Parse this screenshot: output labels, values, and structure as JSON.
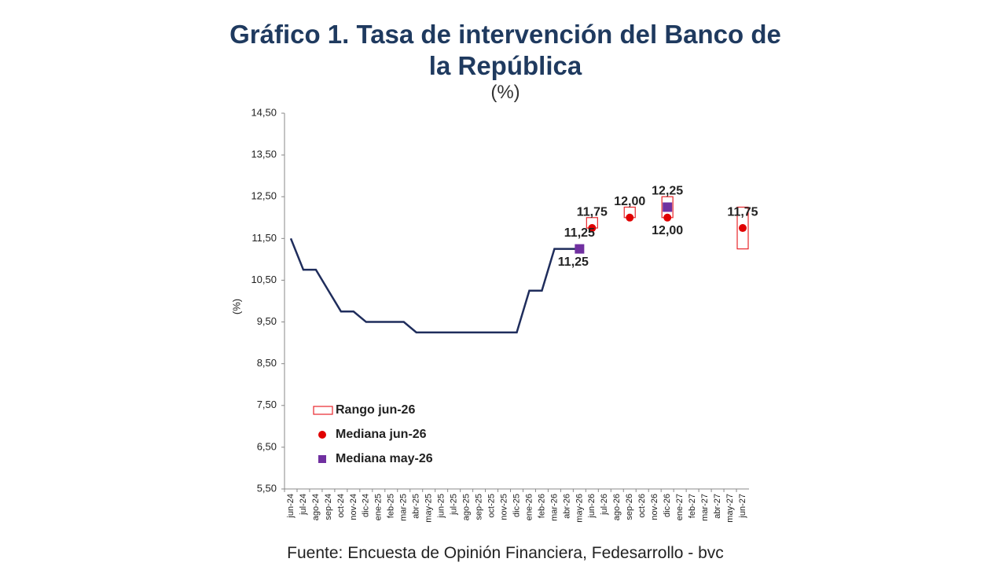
{
  "chart_data": {
    "type": "line",
    "title": "Gráfico 1. Tasa de intervención del Banco de la República",
    "subtitle": "(%)",
    "ylabel": "(%)",
    "source": "Fuente: Encuesta de Opinión Financiera, Fedesarrollo - bvc",
    "categories": [
      "jun-24",
      "jul-24",
      "ago-24",
      "sep-24",
      "oct-24",
      "nov-24",
      "dic-24",
      "ene-25",
      "feb-25",
      "mar-25",
      "abr-25",
      "may-25",
      "jun-25",
      "jul-25",
      "ago-25",
      "sep-25",
      "oct-25",
      "nov-25",
      "dic-25",
      "ene-26",
      "feb-26",
      "mar-26",
      "abr-26",
      "may-26",
      "jun-26",
      "jul-26",
      "ago-26",
      "sep-26",
      "oct-26",
      "nov-26",
      "dic-26",
      "ene-27",
      "feb-27",
      "mar-27",
      "abr-27",
      "may-27",
      "jun-27"
    ],
    "ylim": [
      5.5,
      14.5
    ],
    "yticks": [
      {
        "value": 5.5,
        "label": "5,50"
      },
      {
        "value": 6.5,
        "label": "6,50"
      },
      {
        "value": 7.5,
        "label": "7,50"
      },
      {
        "value": 8.5,
        "label": "8,50"
      },
      {
        "value": 9.5,
        "label": "9,50"
      },
      {
        "value": 10.5,
        "label": "10,50"
      },
      {
        "value": 11.5,
        "label": "11,50"
      },
      {
        "value": 12.5,
        "label": "12,50"
      },
      {
        "value": 13.5,
        "label": "13,50"
      },
      {
        "value": 14.5,
        "label": "14,50"
      }
    ],
    "series": [
      {
        "marker": "line",
        "color": "#1f2d5c",
        "values": [
          11.5,
          10.75,
          10.75,
          10.25,
          9.75,
          9.75,
          9.5,
          9.5,
          9.5,
          9.5,
          9.25,
          9.25,
          9.25,
          9.25,
          9.25,
          9.25,
          9.25,
          9.25,
          9.25,
          10.25,
          10.25,
          11.25,
          11.25,
          11.25,
          null,
          null,
          null,
          null,
          null,
          null,
          null,
          null,
          null,
          null,
          null,
          null,
          null
        ],
        "value_labels": [
          null,
          null,
          null,
          null,
          null,
          null,
          null,
          null,
          null,
          null,
          null,
          null,
          null,
          null,
          null,
          null,
          null,
          null,
          null,
          null,
          null,
          null,
          null,
          "11,25",
          null,
          null,
          null,
          null,
          null,
          null,
          null,
          null,
          null,
          null,
          null,
          null,
          null
        ]
      },
      {
        "name": "Rango jun-26",
        "marker": "range",
        "color": "#e8262b",
        "low": [
          null,
          null,
          null,
          null,
          null,
          null,
          null,
          null,
          null,
          null,
          null,
          null,
          null,
          null,
          null,
          null,
          null,
          null,
          null,
          null,
          null,
          null,
          null,
          null,
          11.75,
          null,
          null,
          12.0,
          null,
          null,
          12.0,
          null,
          null,
          null,
          null,
          null,
          11.25
        ],
        "high": [
          null,
          null,
          null,
          null,
          null,
          null,
          null,
          null,
          null,
          null,
          null,
          null,
          null,
          null,
          null,
          null,
          null,
          null,
          null,
          null,
          null,
          null,
          null,
          null,
          12.0,
          null,
          null,
          12.25,
          null,
          null,
          12.5,
          null,
          null,
          null,
          null,
          null,
          12.25
        ]
      },
      {
        "name": "Mediana jun-26",
        "marker": "circle",
        "color": "#e00000",
        "values": [
          null,
          null,
          null,
          null,
          null,
          null,
          null,
          null,
          null,
          null,
          null,
          null,
          null,
          null,
          null,
          null,
          null,
          null,
          null,
          null,
          null,
          null,
          null,
          null,
          11.75,
          null,
          null,
          12.0,
          null,
          null,
          12.0,
          null,
          null,
          null,
          null,
          null,
          11.75
        ],
        "value_labels": [
          null,
          null,
          null,
          null,
          null,
          null,
          null,
          null,
          null,
          null,
          null,
          null,
          null,
          null,
          null,
          null,
          null,
          null,
          null,
          null,
          null,
          null,
          null,
          null,
          "11,75",
          null,
          null,
          "12,00",
          null,
          null,
          "12,00",
          null,
          null,
          null,
          null,
          null,
          "11,75"
        ]
      },
      {
        "name": "Mediana may-26",
        "marker": "square",
        "color": "#7030a0",
        "values": [
          null,
          null,
          null,
          null,
          null,
          null,
          null,
          null,
          null,
          null,
          null,
          null,
          null,
          null,
          null,
          null,
          null,
          null,
          null,
          null,
          null,
          null,
          null,
          11.25,
          null,
          null,
          null,
          null,
          null,
          null,
          12.25,
          null,
          null,
          null,
          null,
          null,
          null
        ],
        "value_labels": [
          null,
          null,
          null,
          null,
          null,
          null,
          null,
          null,
          null,
          null,
          null,
          null,
          null,
          null,
          null,
          null,
          null,
          null,
          null,
          null,
          null,
          null,
          null,
          "11,25",
          null,
          null,
          null,
          null,
          null,
          null,
          "12,25",
          null,
          null,
          null,
          null,
          null,
          null
        ]
      }
    ]
  }
}
